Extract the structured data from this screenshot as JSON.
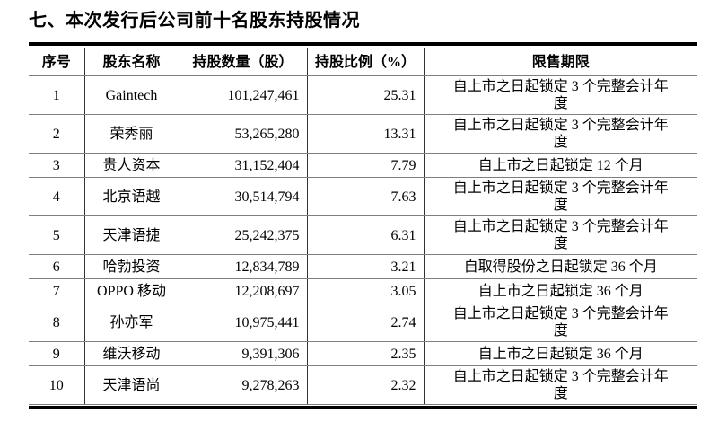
{
  "page": {
    "title": "七、本次发行后公司前十名股东持股情况"
  },
  "table": {
    "headers": {
      "seq": "序号",
      "name": "股东名称",
      "shares": "持股数量（股）",
      "ratio": "持股比例（%）",
      "lockup": "限售期限"
    },
    "rows": [
      {
        "seq": "1",
        "name": "Gaintech",
        "shares": "101,247,461",
        "ratio": "25.31",
        "lockup": "自上市之日起锁定 3 个完整会计年度"
      },
      {
        "seq": "2",
        "name": "荣秀丽",
        "shares": "53,265,280",
        "ratio": "13.31",
        "lockup": "自上市之日起锁定 3 个完整会计年度"
      },
      {
        "seq": "3",
        "name": "贵人资本",
        "shares": "31,152,404",
        "ratio": "7.79",
        "lockup": "自上市之日起锁定 12 个月"
      },
      {
        "seq": "4",
        "name": "北京语越",
        "shares": "30,514,794",
        "ratio": "7.63",
        "lockup": "自上市之日起锁定 3 个完整会计年度"
      },
      {
        "seq": "5",
        "name": "天津语捷",
        "shares": "25,242,375",
        "ratio": "6.31",
        "lockup": "自上市之日起锁定 3 个完整会计年度"
      },
      {
        "seq": "6",
        "name": "哈勃投资",
        "shares": "12,834,789",
        "ratio": "3.21",
        "lockup": "自取得股份之日起锁定 36 个月"
      },
      {
        "seq": "7",
        "name": "OPPO 移动",
        "shares": "12,208,697",
        "ratio": "3.05",
        "lockup": "自上市之日起锁定 36 个月"
      },
      {
        "seq": "8",
        "name": "孙亦军",
        "shares": "10,975,441",
        "ratio": "2.74",
        "lockup": "自上市之日起锁定 3 个完整会计年度"
      },
      {
        "seq": "9",
        "name": "维沃移动",
        "shares": "9,391,306",
        "ratio": "2.35",
        "lockup": "自上市之日起锁定 36 个月"
      },
      {
        "seq": "10",
        "name": "天津语尚",
        "shares": "9,278,263",
        "ratio": "2.32",
        "lockup": "自上市之日起锁定 3 个完整会计年度"
      }
    ]
  }
}
